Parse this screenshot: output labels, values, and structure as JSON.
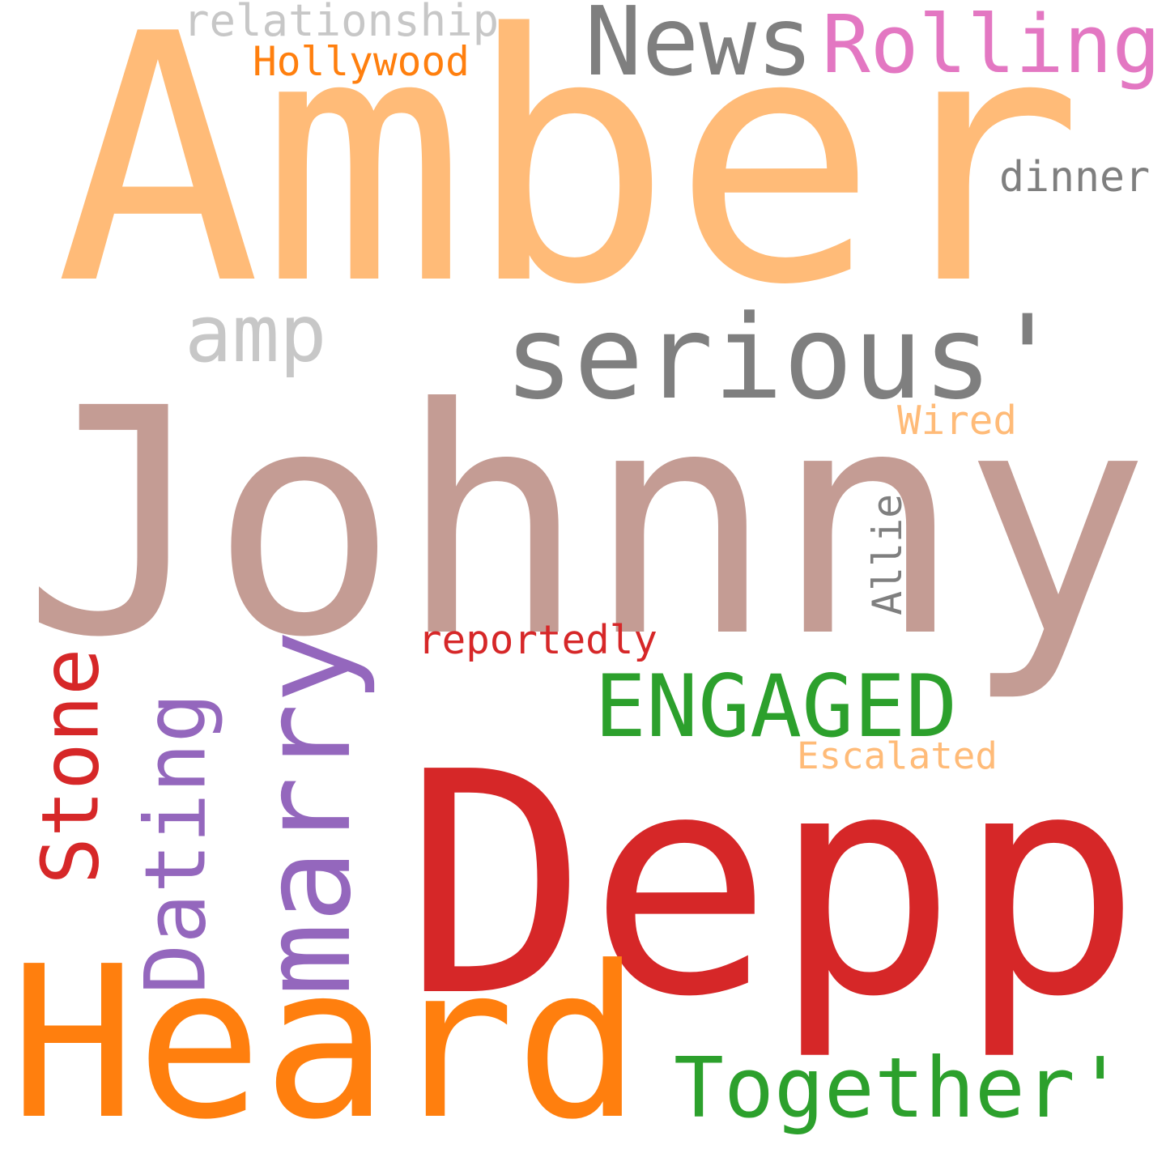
{
  "words": [
    {
      "id": "amber",
      "text": "Amber",
      "color": "#ffbb78",
      "orientation": "horizontal"
    },
    {
      "id": "johnny",
      "text": "Johnny",
      "color": "#c49c94",
      "orientation": "horizontal"
    },
    {
      "id": "depp",
      "text": "Depp",
      "color": "#d62728",
      "orientation": "horizontal"
    },
    {
      "id": "heard",
      "text": "Heard",
      "color": "#ff7f0e",
      "orientation": "horizontal"
    },
    {
      "id": "news",
      "text": "News",
      "color": "#7f7f7f",
      "orientation": "horizontal"
    },
    {
      "id": "rolling",
      "text": "Rolling",
      "color": "#e377c2",
      "orientation": "horizontal"
    },
    {
      "id": "serious",
      "text": "serious'",
      "color": "#7f7f7f",
      "orientation": "horizontal"
    },
    {
      "id": "amp",
      "text": "amp",
      "color": "#c7c7c7",
      "orientation": "horizontal"
    },
    {
      "id": "relationship",
      "text": "relationship",
      "color": "#c7c7c7",
      "orientation": "horizontal"
    },
    {
      "id": "hollywood",
      "text": "Hollywood",
      "color": "#ff7f0e",
      "orientation": "horizontal"
    },
    {
      "id": "dinner",
      "text": "dinner",
      "color": "#7f7f7f",
      "orientation": "horizontal"
    },
    {
      "id": "wired",
      "text": "Wired",
      "color": "#ffbb78",
      "orientation": "horizontal"
    },
    {
      "id": "allie",
      "text": "Allie",
      "color": "#7f7f7f",
      "orientation": "vertical"
    },
    {
      "id": "reportedly",
      "text": "reportedly",
      "color": "#d62728",
      "orientation": "horizontal"
    },
    {
      "id": "marry",
      "text": "marry",
      "color": "#9467bd",
      "orientation": "vertical"
    },
    {
      "id": "dating",
      "text": "Dating",
      "color": "#9467bd",
      "orientation": "vertical"
    },
    {
      "id": "stone",
      "text": "Stone",
      "color": "#d62728",
      "orientation": "vertical"
    },
    {
      "id": "engaged",
      "text": "ENGAGED",
      "color": "#2ca02c",
      "orientation": "horizontal"
    },
    {
      "id": "escalated",
      "text": "Escalated",
      "color": "#ffbb78",
      "orientation": "horizontal"
    },
    {
      "id": "together",
      "text": "Together'",
      "color": "#2ca02c",
      "orientation": "horizontal"
    }
  ]
}
